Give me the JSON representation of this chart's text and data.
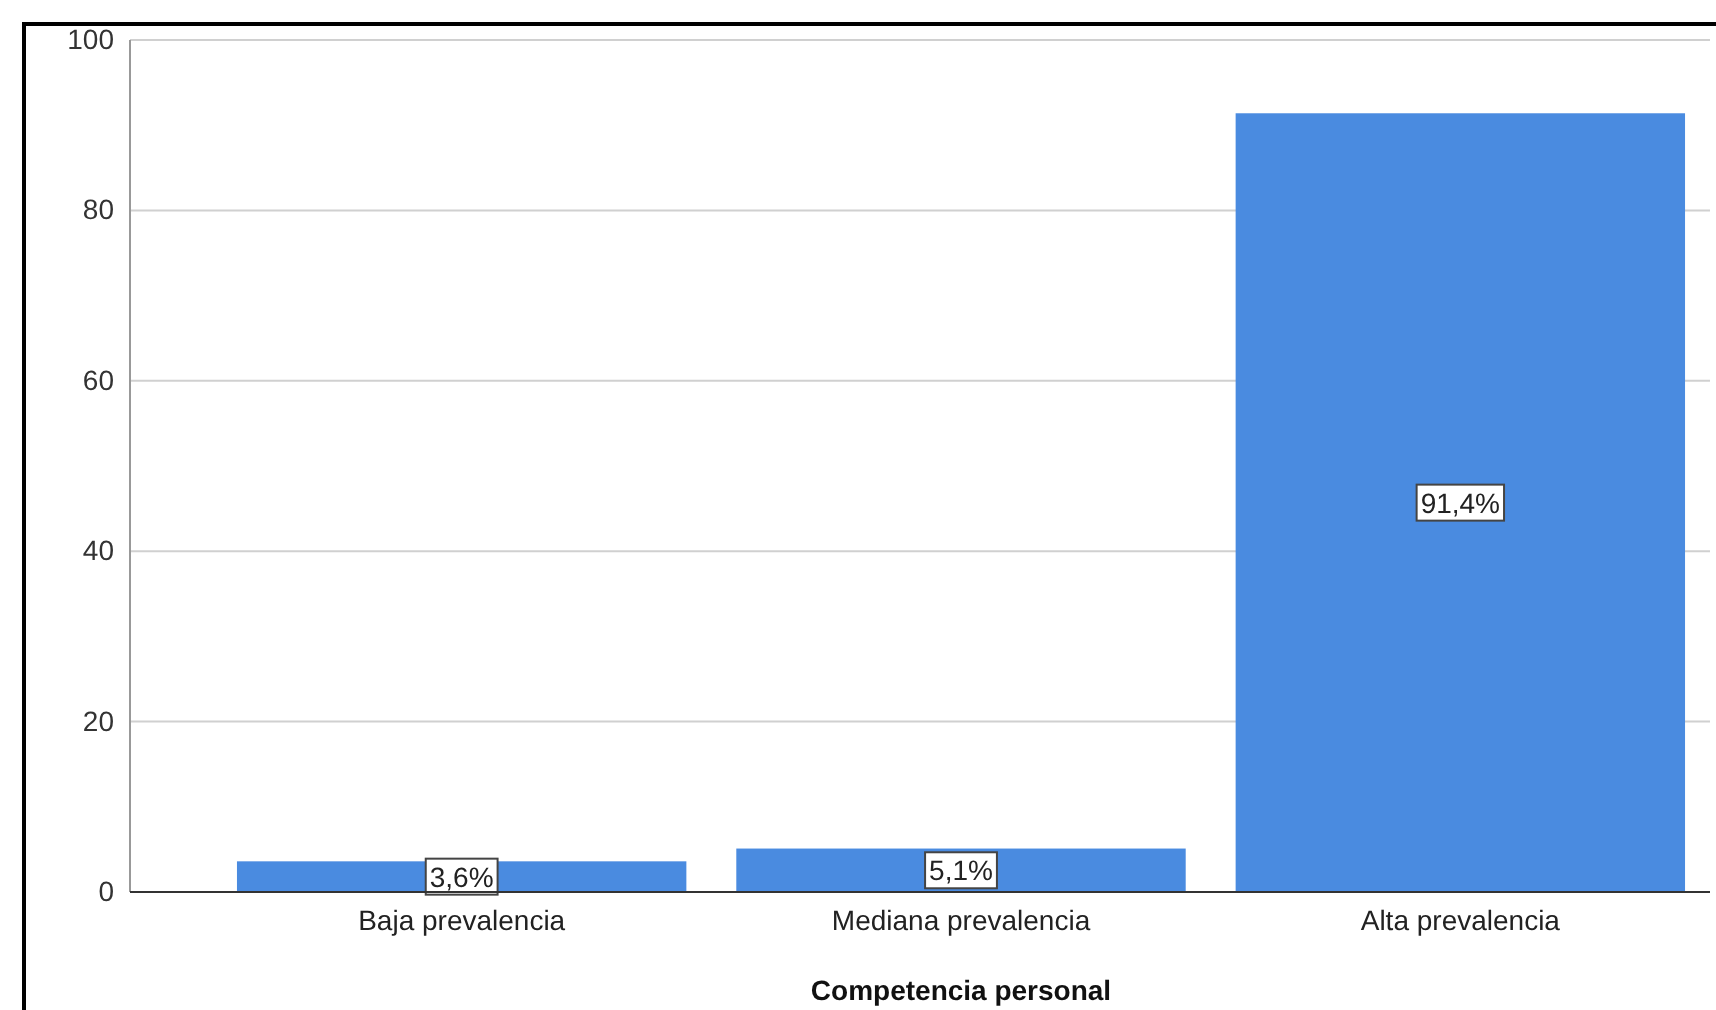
{
  "chart_data": {
    "type": "bar",
    "xlabel": "Competencia personal",
    "categories": [
      "Baja prevalencia",
      "Mediana prevalencia",
      "Alta prevalencia"
    ],
    "values": [
      3.6,
      5.1,
      91.4
    ],
    "value_labels": [
      "3,6%",
      "5,1%",
      "91,4%"
    ],
    "color": "#4a8be0",
    "ylim": [
      0,
      100
    ],
    "yticks": [
      0,
      20,
      40,
      60,
      80,
      100
    ],
    "grid": "y"
  }
}
